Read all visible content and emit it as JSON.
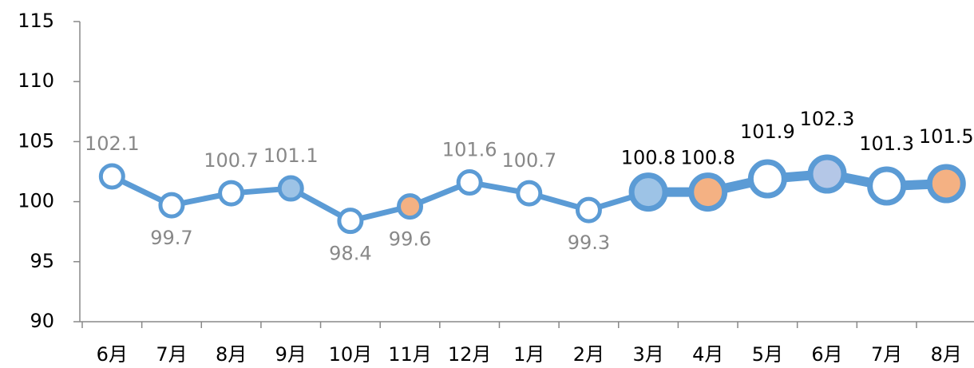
{
  "chart_data": {
    "type": "line",
    "categories": [
      "6月",
      "7月",
      "8月",
      "9月",
      "10月",
      "11月",
      "12月",
      "1月",
      "2月",
      "3月",
      "4月",
      "5月",
      "6月",
      "7月",
      "8月"
    ],
    "series": [
      {
        "color": "#5b9bd5",
        "values": [
          102.1,
          99.7,
          100.7,
          101.1,
          98.4,
          99.6,
          101.6,
          100.7,
          99.3,
          100.8,
          100.8,
          101.9,
          102.3,
          101.3,
          101.5
        ],
        "marker_colors": [
          "#ffffff",
          "#ffffff",
          "#ffffff",
          "#9dc3e6",
          "#ffffff",
          "#f4b183",
          "#ffffff",
          "#ffffff",
          "#ffffff",
          "#9dc3e6",
          "#f4b183",
          "#ffffff",
          "#b4c7e7",
          "#ffffff",
          "#f4b183"
        ],
        "label_colors": [
          "#888888",
          "#888888",
          "#888888",
          "#888888",
          "#888888",
          "#888888",
          "#888888",
          "#888888",
          "#888888",
          "#000000",
          "#000000",
          "#000000",
          "#000000",
          "#000000",
          "#000000"
        ],
        "label_positions": [
          "above",
          "below",
          "above",
          "above",
          "below",
          "below",
          "above",
          "above",
          "below",
          "above",
          "above",
          "above",
          "above",
          "above",
          "above"
        ]
      }
    ],
    "ylim": [
      90,
      115
    ],
    "yticks": [
      90,
      95,
      100,
      105,
      110,
      115
    ]
  }
}
